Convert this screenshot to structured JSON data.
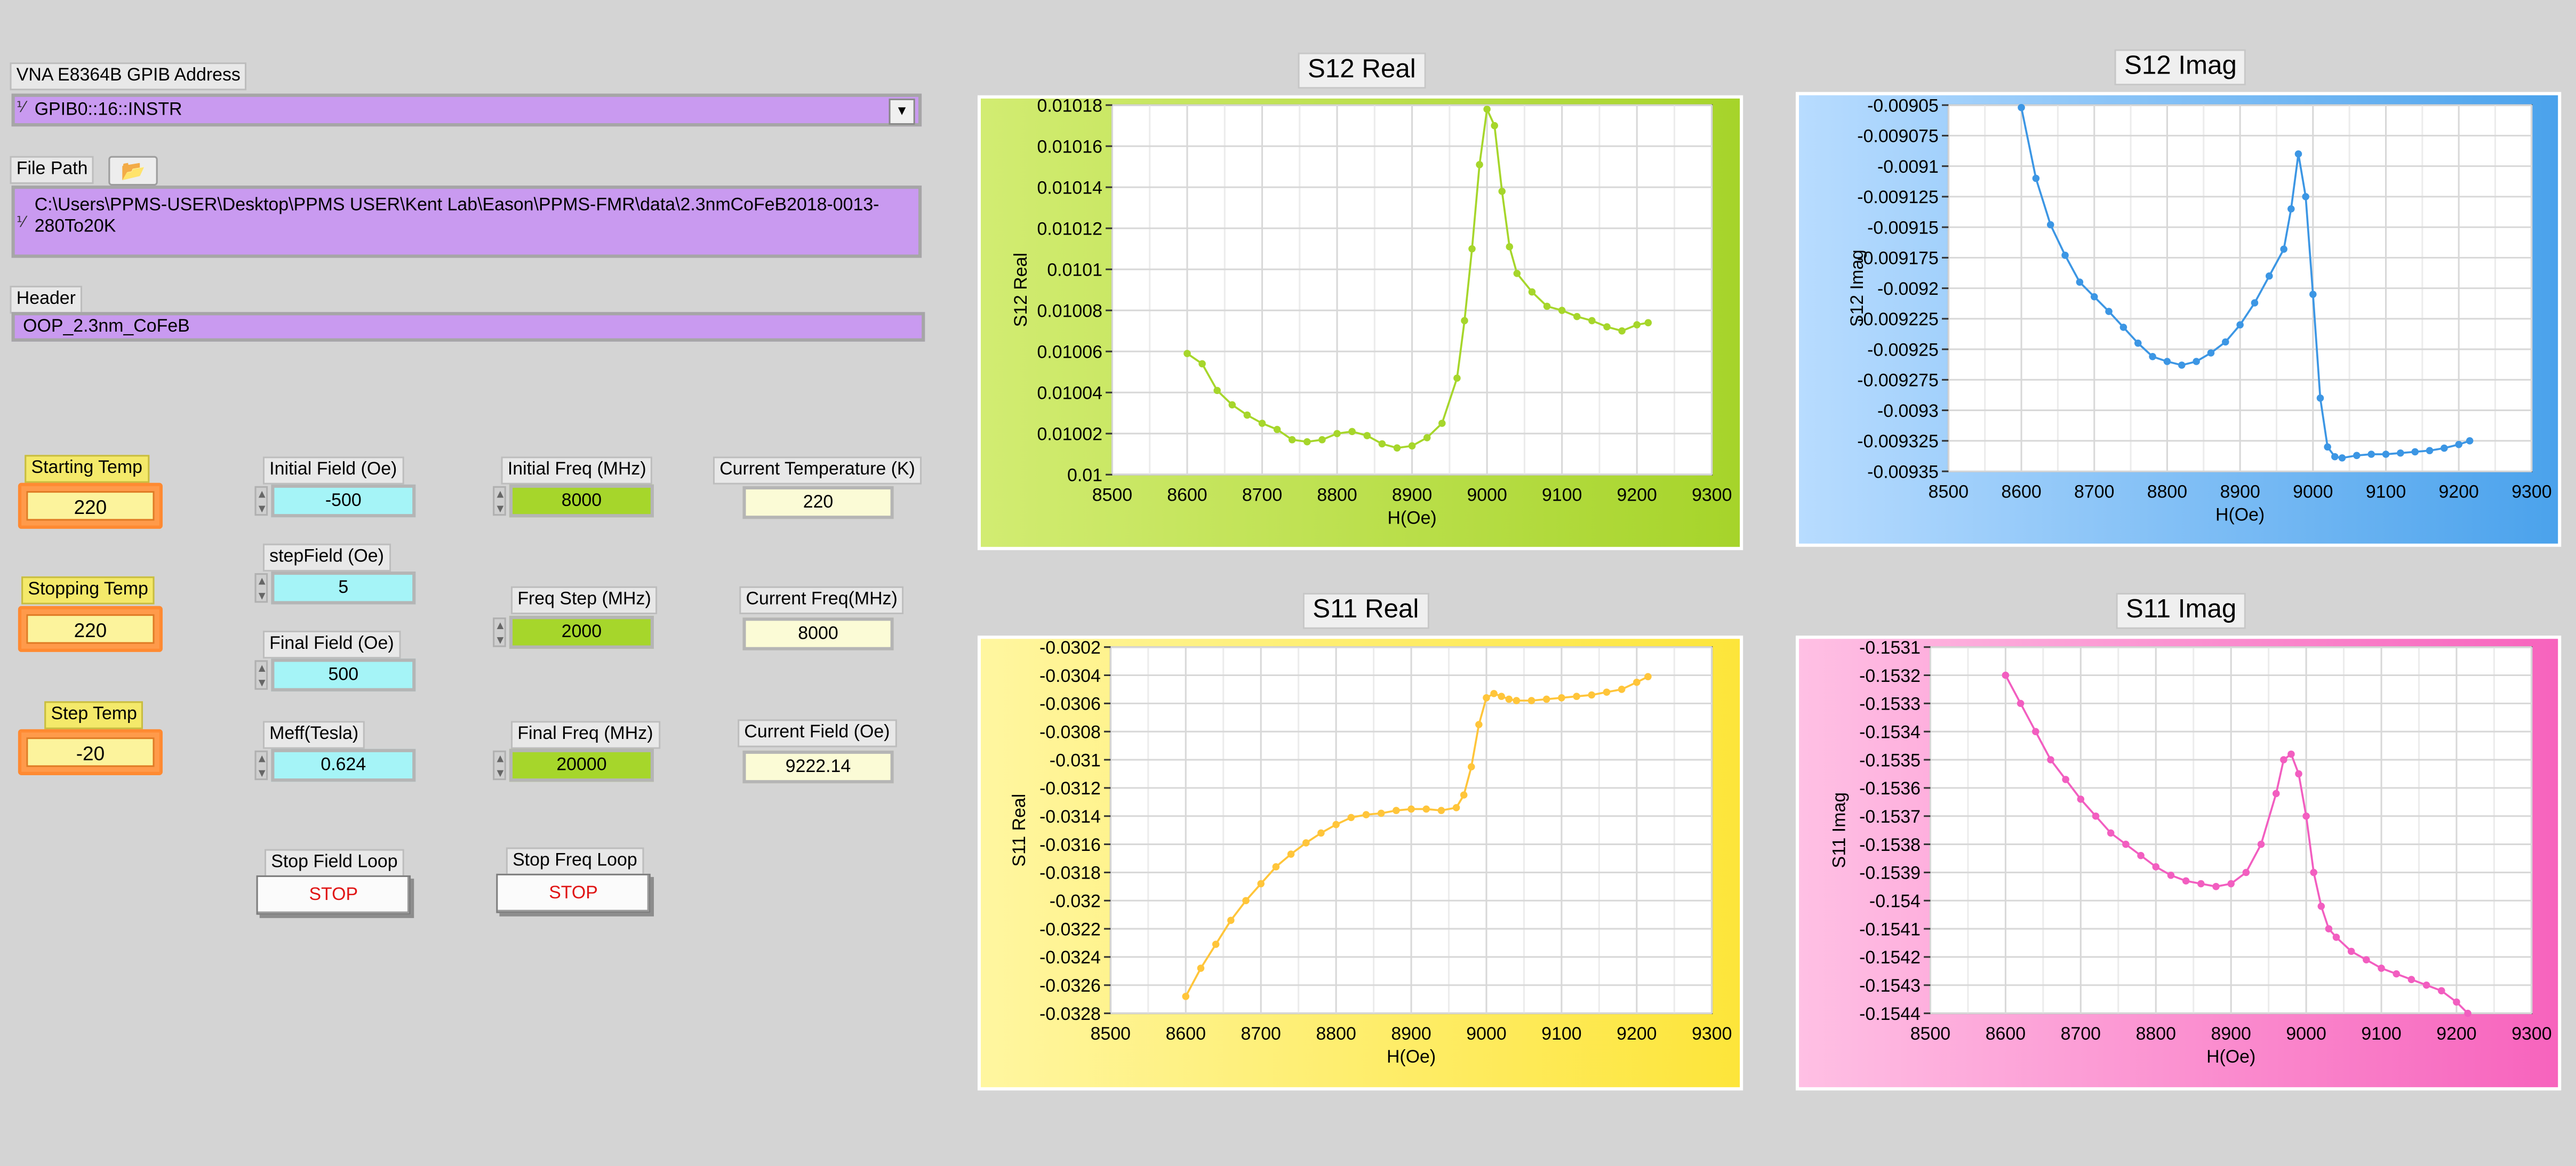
{
  "vna": {
    "label": "VNA E8364B GPIB Address",
    "value": "GPIB0::16::INSTR"
  },
  "file_path": {
    "label": "File Path",
    "value": "C:\\Users\\PPMS-USER\\Desktop\\PPMS USER\\Kent Lab\\Eason\\PPMS-FMR\\data\\2.3nmCoFeB2018-0013-280To20K"
  },
  "header": {
    "label": "Header",
    "value": "OOP_2.3nm_CoFeB"
  },
  "temps": [
    {
      "label": "Starting Temp",
      "value": "220"
    },
    {
      "label": "Stopping Temp",
      "value": "220"
    },
    {
      "label": "Step Temp",
      "value": "-20"
    }
  ],
  "fields": [
    {
      "label": "Initial Field (Oe)",
      "value": "-500"
    },
    {
      "label": "stepField (Oe)",
      "value": "5"
    },
    {
      "label": "Final Field (Oe)",
      "value": "500"
    },
    {
      "label": "Meff(Tesla)",
      "value": "0.624"
    }
  ],
  "freqs": [
    {
      "label": "Initial Freq (MHz)",
      "value": "8000"
    },
    {
      "label": "Freq Step (MHz)",
      "value": "2000"
    },
    {
      "label": "Final Freq (MHz)",
      "value": "20000"
    }
  ],
  "indicators": [
    {
      "label": "Current Temperature (K)",
      "value": "220"
    },
    {
      "label": "Current Freq(MHz)",
      "value": "8000"
    },
    {
      "label": "Current Field (Oe)",
      "value": "9222.14"
    }
  ],
  "stop_field": {
    "label": "Stop Field Loop",
    "button": "STOP"
  },
  "stop_freq": {
    "label": "Stop Freq Loop",
    "button": "STOP"
  },
  "chart_data": [
    {
      "type": "scatter",
      "title": "S12 Real",
      "xlabel": "H(Oe)",
      "ylabel": "S12 Real",
      "xlim": [
        8500,
        9300
      ],
      "ylim": [
        0.01,
        0.01018
      ],
      "xticks": [
        "8500",
        "8600",
        "8700",
        "8800",
        "8900",
        "9000",
        "9100",
        "9200",
        "9300"
      ],
      "yticks": [
        "0.01018",
        "0.01016",
        "0.01014",
        "0.01012",
        "0.0101",
        "0.01008",
        "0.01006",
        "0.01004",
        "0.01002",
        "0.01"
      ],
      "grid": true,
      "color": "#a6d62b",
      "x": [
        8600,
        8620,
        8640,
        8660,
        8680,
        8700,
        8720,
        8740,
        8760,
        8780,
        8800,
        8820,
        8840,
        8860,
        8880,
        8900,
        8920,
        8940,
        8960,
        8970,
        8980,
        8990,
        9000,
        9010,
        9020,
        9030,
        9040,
        9060,
        9080,
        9100,
        9120,
        9140,
        9160,
        9180,
        9200,
        9215
      ],
      "y": [
        0.010059,
        0.010054,
        0.010041,
        0.010034,
        0.010029,
        0.010025,
        0.010022,
        0.010017,
        0.010016,
        0.010017,
        0.01002,
        0.010021,
        0.010019,
        0.010015,
        0.010013,
        0.010014,
        0.010018,
        0.010025,
        0.010047,
        0.010075,
        0.01011,
        0.010151,
        0.010178,
        0.01017,
        0.010138,
        0.010111,
        0.010098,
        0.010089,
        0.010082,
        0.01008,
        0.010077,
        0.010075,
        0.010072,
        0.01007,
        0.010073,
        0.010074
      ]
    },
    {
      "type": "scatter",
      "title": "S12 Imag",
      "xlabel": "H(Oe)",
      "ylabel": "S12 Imag",
      "xlim": [
        8500,
        9300
      ],
      "ylim": [
        -0.00935,
        -0.00905
      ],
      "xticks": [
        "8500",
        "8600",
        "8700",
        "8800",
        "8900",
        "9000",
        "9100",
        "9200",
        "9300"
      ],
      "yticks": [
        "-0.00905",
        "-0.009075",
        "-0.0091",
        "-0.009125",
        "-0.00915",
        "-0.009175",
        "-0.0092",
        "-0.009225",
        "-0.00925",
        "-0.009275",
        "-0.0093",
        "-0.009325",
        "-0.00935"
      ],
      "grid": true,
      "color": "#3c96e4",
      "x": [
        8600,
        8620,
        8640,
        8660,
        8680,
        8700,
        8720,
        8740,
        8760,
        8780,
        8800,
        8820,
        8840,
        8860,
        8880,
        8900,
        8920,
        8940,
        8960,
        8970,
        8980,
        8990,
        9000,
        9010,
        9020,
        9030,
        9040,
        9060,
        9080,
        9100,
        9120,
        9140,
        9160,
        9180,
        9200,
        9215
      ],
      "y": [
        -0.009052,
        -0.00911,
        -0.009148,
        -0.009173,
        -0.009195,
        -0.009207,
        -0.009219,
        -0.009232,
        -0.009245,
        -0.009256,
        -0.00926,
        -0.009263,
        -0.00926,
        -0.009253,
        -0.009244,
        -0.00923,
        -0.009212,
        -0.00919,
        -0.009168,
        -0.009135,
        -0.00909,
        -0.009125,
        -0.009205,
        -0.00929,
        -0.00933,
        -0.009338,
        -0.009339,
        -0.009337,
        -0.009336,
        -0.009336,
        -0.009335,
        -0.009334,
        -0.009333,
        -0.009331,
        -0.009328,
        -0.009325
      ]
    },
    {
      "type": "scatter",
      "title": "S11 Real",
      "xlabel": "H(Oe)",
      "ylabel": "S11 Real",
      "xlim": [
        8500,
        9300
      ],
      "ylim": [
        -0.0328,
        -0.0302
      ],
      "xticks": [
        "8500",
        "8600",
        "8700",
        "8800",
        "8900",
        "9000",
        "9100",
        "9200",
        "9300"
      ],
      "yticks": [
        "-0.0302",
        "-0.0304",
        "-0.0306",
        "-0.0308",
        "-0.031",
        "-0.0312",
        "-0.0314",
        "-0.0316",
        "-0.0318",
        "-0.032",
        "-0.0322",
        "-0.0324",
        "-0.0326",
        "-0.0328"
      ],
      "grid": true,
      "color": "#ffc53a",
      "x": [
        8600,
        8620,
        8640,
        8660,
        8680,
        8700,
        8720,
        8740,
        8760,
        8780,
        8800,
        8820,
        8840,
        8860,
        8880,
        8900,
        8920,
        8940,
        8960,
        8970,
        8980,
        8990,
        9000,
        9010,
        9020,
        9030,
        9040,
        9060,
        9080,
        9100,
        9120,
        9140,
        9160,
        9180,
        9200,
        9215
      ],
      "y": [
        -0.03268,
        -0.03248,
        -0.03231,
        -0.03214,
        -0.032,
        -0.03188,
        -0.03176,
        -0.03167,
        -0.03159,
        -0.03152,
        -0.03146,
        -0.03141,
        -0.03139,
        -0.03138,
        -0.03136,
        -0.03135,
        -0.03135,
        -0.03136,
        -0.03134,
        -0.03125,
        -0.03105,
        -0.03075,
        -0.03056,
        -0.03053,
        -0.03055,
        -0.03057,
        -0.03058,
        -0.03058,
        -0.03057,
        -0.03056,
        -0.03055,
        -0.03054,
        -0.03052,
        -0.0305,
        -0.03045,
        -0.03041
      ]
    },
    {
      "type": "scatter",
      "title": "S11 Imag",
      "xlabel": "H(Oe)",
      "ylabel": "S11 Imag",
      "xlim": [
        8500,
        9300
      ],
      "ylim": [
        -0.1544,
        -0.1531
      ],
      "xticks": [
        "8500",
        "8600",
        "8700",
        "8800",
        "8900",
        "9000",
        "9100",
        "9200",
        "9300"
      ],
      "yticks": [
        "-0.1531",
        "-0.1532",
        "-0.1533",
        "-0.1534",
        "-0.1535",
        "-0.1536",
        "-0.1537",
        "-0.1538",
        "-0.1539",
        "-0.154",
        "-0.1541",
        "-0.1542",
        "-0.1543",
        "-0.1544"
      ],
      "grid": true,
      "color": "#f25ec0",
      "x": [
        8600,
        8620,
        8640,
        8660,
        8680,
        8700,
        8720,
        8740,
        8760,
        8780,
        8800,
        8820,
        8840,
        8860,
        8880,
        8900,
        8920,
        8940,
        8960,
        8970,
        8980,
        8990,
        9000,
        9010,
        9020,
        9030,
        9040,
        9060,
        9080,
        9100,
        9120,
        9140,
        9160,
        9180,
        9200,
        9215
      ],
      "y": [
        -0.1532,
        -0.1533,
        -0.1534,
        -0.1535,
        -0.15357,
        -0.15364,
        -0.1537,
        -0.15376,
        -0.1538,
        -0.15384,
        -0.15388,
        -0.15391,
        -0.15393,
        -0.15394,
        -0.15395,
        -0.15394,
        -0.1539,
        -0.1538,
        -0.15362,
        -0.1535,
        -0.15348,
        -0.15355,
        -0.1537,
        -0.1539,
        -0.15402,
        -0.1541,
        -0.15413,
        -0.15418,
        -0.15421,
        -0.15424,
        -0.15426,
        -0.15428,
        -0.1543,
        -0.15432,
        -0.15436,
        -0.1544
      ]
    }
  ]
}
